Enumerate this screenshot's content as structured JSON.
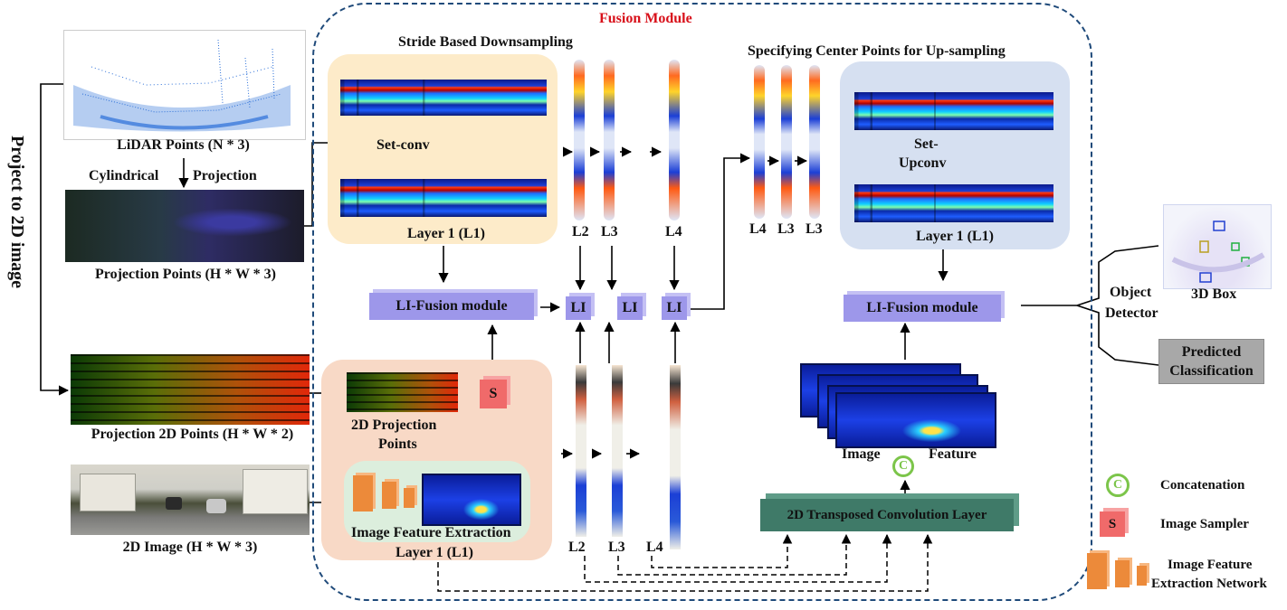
{
  "side_label": "Project to 2D image",
  "inputs": {
    "lidar": "LiDAR Points (N * 3)",
    "cyl_left": "Cylindrical",
    "cyl_right": "Projection",
    "proj_points": "Projection Points (H * W * 3)",
    "proj_2d": "Projection 2D Points (H * W * 2)",
    "image_2d": "2D Image (H * W * 3)"
  },
  "fusion": {
    "title": "Fusion Module",
    "down_title": "Stride Based Downsampling",
    "up_title": "Specifying Center Points for Up-sampling",
    "set_conv": "Set-conv",
    "set_upconv_1": "Set-",
    "set_upconv_2": "Upconv",
    "layer1_down": "Layer 1 (L1)",
    "layer1_up": "Layer 1 (L1)",
    "layer1_img": "Layer 1 (L1)",
    "li_fusion_left": "LI-Fusion module",
    "li_fusion_right": "LI-Fusion module",
    "li": [
      "LI",
      "LI",
      "LI"
    ],
    "down_levels": [
      "L2",
      "L3",
      "L4"
    ],
    "up_levels": [
      "L4",
      "L3",
      "L3"
    ],
    "img_levels": [
      "L2",
      "L3",
      "L4"
    ],
    "proj_2d_pts_1": "2D Projection",
    "proj_2d_pts_2": "Points",
    "img_feat_extract": "Image Feature Extraction",
    "sampler_letter": "S",
    "concat_letter": "C",
    "img_feature_left": "Image",
    "img_feature_right": "Feature",
    "transposed_conv": "2D Transposed Convolution Layer"
  },
  "outputs": {
    "object": "Object",
    "detector": "Detector",
    "box_3d": "3D Box",
    "predicted_1": "Predicted",
    "predicted_2": "Classification"
  },
  "legend": {
    "concat": "Concatenation",
    "sampler": "Image Sampler",
    "ifen_1": "Image Feature",
    "ifen_2": "Extraction Network"
  },
  "colors": {
    "fusion_title": "#d8101a",
    "fusion_border": "#1f4a7a",
    "down_panel": "#fdebc9",
    "up_panel": "#d6e0f1",
    "img_panel": "#f8d9c6",
    "img_inner": "#dceedd",
    "li_box": "#9d97ea",
    "sampler": "#f06a6a",
    "transposed": "#3f7a68",
    "predicted_box": "#a8a8a8",
    "concat_ring": "#7cc54a"
  }
}
